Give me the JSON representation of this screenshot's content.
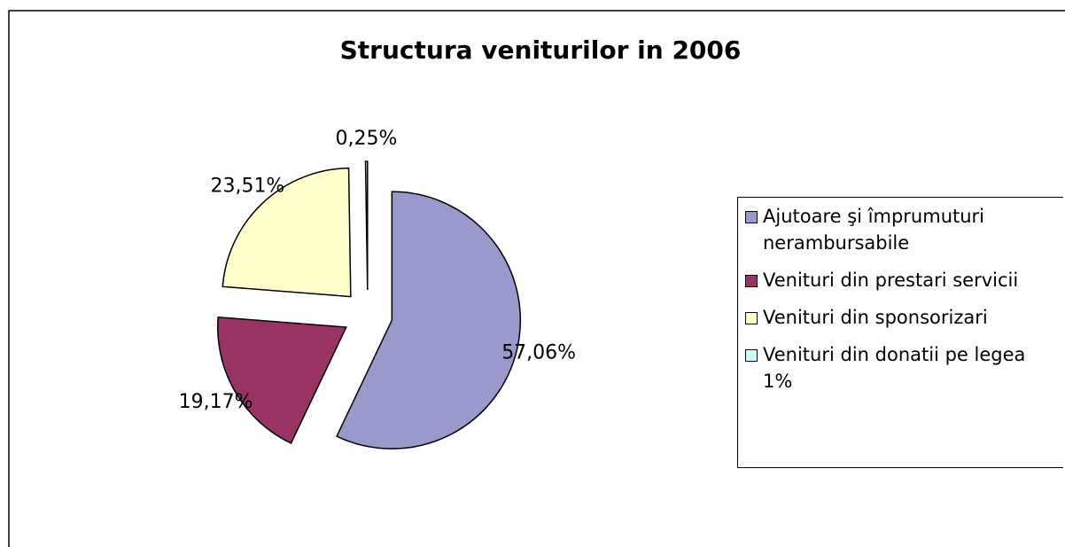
{
  "chart_data": {
    "type": "pie",
    "title": "Structura veniturilor in 2006",
    "categories": [
      "Ajutoare şi împrumuturi nerambursabile",
      "Venituri din prestari servicii",
      "Venituri din sponsorizari",
      "Venituri din donatii pe legea 1%"
    ],
    "values": [
      57.06,
      19.17,
      23.51,
      0.25
    ],
    "value_labels": [
      "57,06%",
      "19,17%",
      "23,51%",
      "0,25%"
    ],
    "colors": [
      "#9999cc",
      "#993366",
      "#ffffcc",
      "#ccffff"
    ],
    "legend": "right"
  }
}
